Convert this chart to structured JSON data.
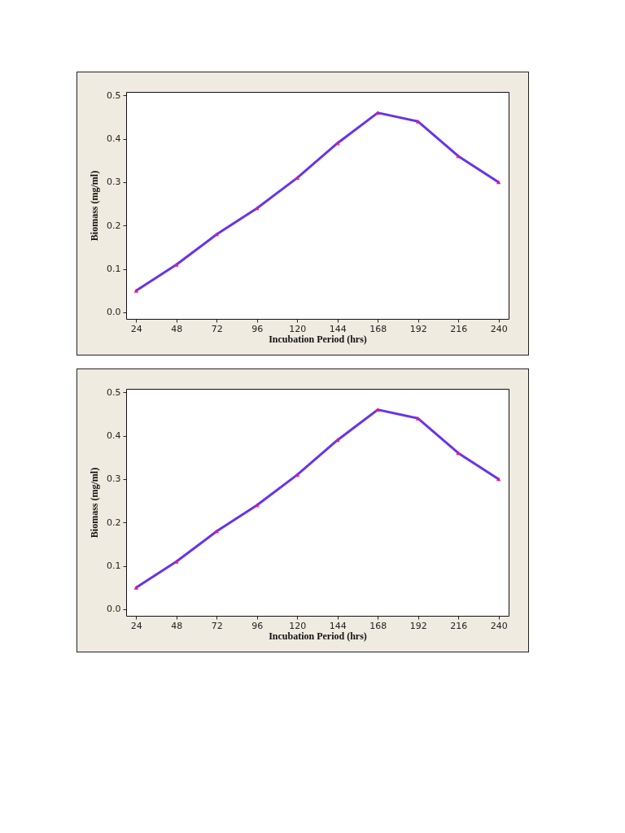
{
  "chart_data": [
    {
      "type": "line",
      "xlabel": "Incubation Period (hrs)",
      "ylabel": "Biomass (mg/ml)",
      "x": [
        24,
        48,
        72,
        96,
        120,
        144,
        168,
        192,
        216,
        240
      ],
      "series": [
        {
          "color": "#6633ee",
          "values": [
            0.05,
            0.11,
            0.18,
            0.24,
            0.31,
            0.39,
            0.46,
            0.44,
            0.36,
            0.3
          ]
        }
      ],
      "xlim": [
        18,
        246
      ],
      "xticks": [
        24,
        48,
        72,
        96,
        120,
        144,
        168,
        192,
        216,
        240
      ],
      "ylim": [
        -0.015,
        0.508
      ],
      "yticks": [
        {
          "value": 0,
          "label": "0.0"
        },
        0.1,
        0.2,
        0.3,
        0.4,
        0.5
      ],
      "grid": false,
      "marker": "triangle",
      "line_style": "solid"
    },
    {
      "type": "line",
      "xlabel": "Incubation Period (hrs)",
      "ylabel": "Biomass (mg/ml)",
      "x": [
        24,
        48,
        72,
        96,
        120,
        144,
        168,
        192,
        216,
        240
      ],
      "series": [
        {
          "color": "#6633ee",
          "values": [
            0.05,
            0.11,
            0.18,
            0.24,
            0.31,
            0.39,
            0.46,
            0.44,
            0.36,
            0.3
          ]
        }
      ],
      "xlim": [
        18,
        246
      ],
      "xticks": [
        24,
        48,
        72,
        96,
        120,
        144,
        168,
        192,
        216,
        240
      ],
      "ylim": [
        -0.015,
        0.508
      ],
      "yticks": [
        {
          "value": 0,
          "label": "0.0"
        },
        0.1,
        0.2,
        0.3,
        0.4,
        0.5
      ],
      "grid": false,
      "marker": "triangle",
      "line_style": "solid"
    }
  ]
}
